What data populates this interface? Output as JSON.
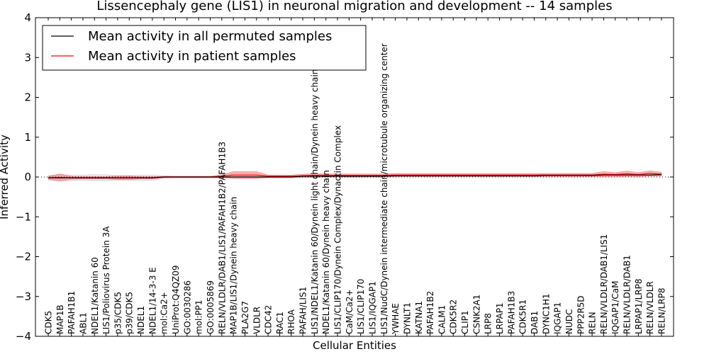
{
  "chart_data": {
    "type": "line",
    "title": "Lissencephaly gene (LIS1) in neuronal migration and development -- 14 samples",
    "xlabel": "Cellular Entities",
    "ylabel": "Inferred Activity",
    "ylim": [
      -4,
      4
    ],
    "yticks": [
      "−4",
      "−3",
      "−2",
      "−1",
      "0",
      "1",
      "2",
      "3",
      "4"
    ],
    "grid": false,
    "legend": {
      "position": "top-left",
      "entries": [
        {
          "label": "Mean activity in all permuted samples",
          "color": "#000000"
        },
        {
          "label": "Mean activity in patient samples",
          "color": "#ff0000"
        }
      ]
    },
    "categories": [
      "CDK5",
      "MAP1B",
      "PAFAH1B1",
      "ABL1",
      "NDEL1/Katanin 60",
      "LIS1/Poliovirus Protein 3A",
      "p35/CDK5",
      "p39/CDK5",
      "NDEL1",
      "NDEL1/14-3-3 E",
      "mol:Ca2+",
      "UniProt:Q4QZ09",
      "GO:0030286",
      "mol:PP1",
      "GO:0005869",
      "RELN/VLDLR/DAB1/LIS1/PAFAH1B2/PAFAH1B3",
      "MAP1B/LIS1/Dynein heavy chain",
      "PLA2G7",
      "VLDLR",
      "CDC42",
      "RAC1",
      "RHOA",
      "PAFAH/LIS1",
      "LIS1/NDEL1/Katanin 60/Dynein light chain/Dynein heavy chain",
      "NDEL1/Katanin 60/Dynein heavy chain",
      "LIS1/CLIP170/Dynein Complex/Dynactin Complex",
      "CaM/Ca2+",
      "LIS1/CLIP170",
      "LIS1/IQGAP1",
      "LIS1/NudC/Dynein intermediate chain/microtubule organizing center",
      "YWHAE",
      "DYNLT1",
      "KATNA1",
      "PAFAH1B2",
      "CALM1",
      "CDK5R2",
      "CLIP1",
      "CSNK2A1",
      "LRP8",
      "LRPAP1",
      "PAFAH1B3",
      "CDK5R1",
      "DAB1",
      "DYNC1H1",
      "IQGAP1",
      "NUDC",
      "PPP2R5D",
      "RELN",
      "RELN/VLDLR/DAB1/LIS1",
      "IQGAP1/CaM",
      "RELN/VLDLR/DAB1",
      "LRPAP1/LRP8",
      "RELN/VLDLR",
      "RELN/LRP8"
    ],
    "series": [
      {
        "name": "Mean activity in all permuted samples",
        "color": "#000000",
        "values": [
          -0.02,
          -0.02,
          -0.02,
          -0.02,
          -0.02,
          -0.02,
          -0.02,
          -0.02,
          -0.02,
          -0.02,
          0,
          0,
          0,
          0,
          0,
          0,
          0,
          0,
          0,
          0,
          0,
          0,
          0.02,
          0.02,
          0.02,
          0.02,
          0.02,
          0.02,
          0.02,
          0.02,
          0.03,
          0.03,
          0.03,
          0.03,
          0.03,
          0.03,
          0.03,
          0.03,
          0.03,
          0.03,
          0.03,
          0.03,
          0.03,
          0.04,
          0.04,
          0.04,
          0.04,
          0.04,
          0.05,
          0.05,
          0.05,
          0.05,
          0.05,
          0.06
        ],
        "band": [
          0.06,
          0.08,
          0.07,
          0.07,
          0.08,
          0.08,
          0.06,
          0.06,
          0.07,
          0.07,
          0.03,
          0.02,
          0.02,
          0.02,
          0.02,
          0.02,
          0.02,
          0.03,
          0.03,
          0.03,
          0.03,
          0.03,
          0.03,
          0.03,
          0.03,
          0.03,
          0.03,
          0.03,
          0.03,
          0.03,
          0.03,
          0.03,
          0.03,
          0.03,
          0.03,
          0.03,
          0.03,
          0.03,
          0.03,
          0.03,
          0.03,
          0.03,
          0.03,
          0.03,
          0.03,
          0.03,
          0.03,
          0.03,
          0.03,
          0.03,
          0.03,
          0.03,
          0.03,
          0.03
        ]
      },
      {
        "name": "Mean activity in patient samples",
        "color": "#ff0000",
        "values": [
          -0.02,
          -0.01,
          -0.02,
          -0.02,
          -0.02,
          -0.02,
          -0.02,
          -0.02,
          -0.02,
          -0.02,
          0,
          0,
          0,
          0,
          0,
          0.02,
          0.05,
          0.05,
          0.05,
          0.02,
          0.02,
          0.02,
          0.03,
          0.04,
          0.04,
          0.04,
          0.04,
          0.04,
          0.04,
          0.04,
          0.05,
          0.05,
          0.05,
          0.05,
          0.05,
          0.05,
          0.05,
          0.05,
          0.05,
          0.05,
          0.05,
          0.05,
          0.05,
          0.05,
          0.05,
          0.05,
          0.05,
          0.05,
          0.07,
          0.06,
          0.08,
          0.06,
          0.09,
          0.07
        ],
        "band": [
          0.04,
          0.09,
          0.04,
          0.03,
          0.03,
          0.03,
          0.05,
          0.05,
          0.03,
          0.03,
          0.02,
          0.02,
          0.02,
          0.02,
          0.02,
          0.04,
          0.09,
          0.09,
          0.09,
          0.03,
          0.03,
          0.03,
          0.04,
          0.05,
          0.04,
          0.04,
          0.04,
          0.04,
          0.04,
          0.04,
          0.04,
          0.04,
          0.04,
          0.04,
          0.04,
          0.04,
          0.04,
          0.04,
          0.04,
          0.04,
          0.04,
          0.04,
          0.04,
          0.04,
          0.04,
          0.04,
          0.04,
          0.04,
          0.07,
          0.05,
          0.07,
          0.05,
          0.07,
          0.05
        ]
      }
    ],
    "reference_line": {
      "y": 0,
      "style": "dotted",
      "color": "#000000"
    }
  }
}
